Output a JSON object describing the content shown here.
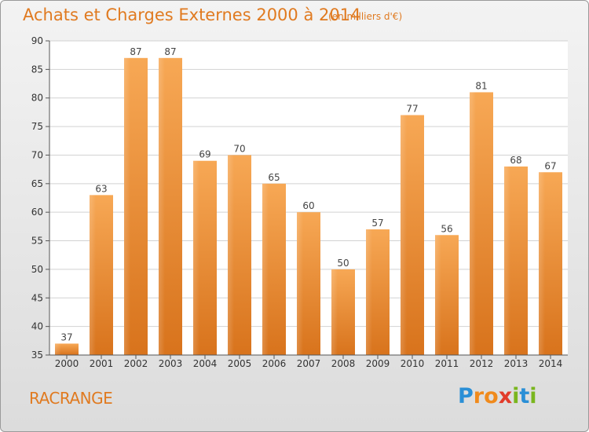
{
  "title": "Achats et Charges Externes 2000 à 2014",
  "subtitle": "(en milliers d'€)",
  "town": "RACRANGE",
  "logo": {
    "letters": [
      "P",
      "r",
      "o",
      "x",
      "i",
      "t",
      "i"
    ],
    "colors": [
      "#2a8fd6",
      "#f08a1c",
      "#f08a1c",
      "#e23b2a",
      "#7ab61e",
      "#2a8fd6",
      "#7ab61e"
    ]
  },
  "colors": {
    "accent": "#e07a20",
    "bar_top": "#f7a855",
    "bar_bottom": "#d8731c"
  },
  "chart_data": {
    "type": "bar",
    "categories": [
      "2000",
      "2001",
      "2002",
      "2003",
      "2004",
      "2005",
      "2006",
      "2007",
      "2008",
      "2009",
      "2010",
      "2011",
      "2012",
      "2013",
      "2014"
    ],
    "values": [
      37,
      63,
      87,
      87,
      69,
      70,
      65,
      60,
      50,
      57,
      77,
      56,
      81,
      68,
      67
    ],
    "title": "Achats et Charges Externes 2000 à 2014",
    "xlabel": "",
    "ylabel": "",
    "ylim": [
      35,
      90
    ],
    "yticks": [
      35,
      40,
      45,
      50,
      55,
      60,
      65,
      70,
      75,
      80,
      85,
      90
    ],
    "grid": true,
    "data_labels": true
  }
}
